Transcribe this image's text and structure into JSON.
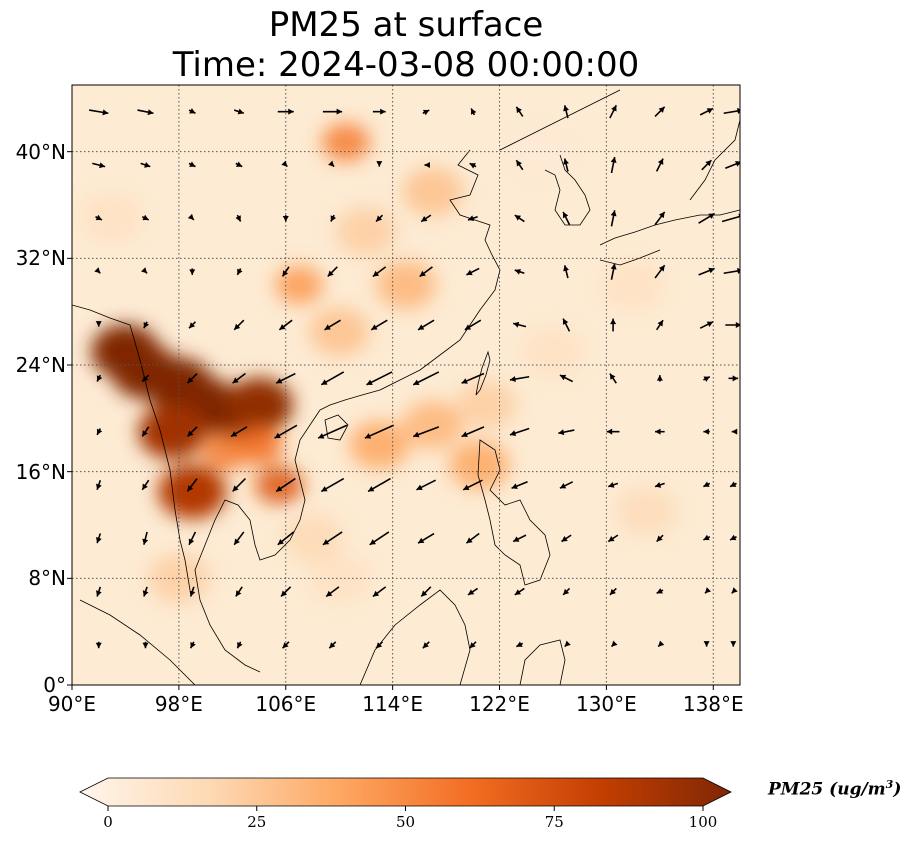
{
  "title": {
    "line1": "PM25 at surface",
    "line2": "Time: 2024-03-08 00:00:00"
  },
  "map": {
    "lon_range": [
      90,
      140
    ],
    "lat_range": [
      0,
      45
    ],
    "gridlines": true,
    "lat_ticks": [
      {
        "value": 40,
        "label": "40°N"
      },
      {
        "value": 32,
        "label": "32°N"
      },
      {
        "value": 24,
        "label": "24°N"
      },
      {
        "value": 16,
        "label": "16°N"
      },
      {
        "value": 8,
        "label": "8°N"
      },
      {
        "value": 0,
        "label": "0°"
      }
    ],
    "lon_ticks": [
      {
        "value": 90,
        "label": "90°E"
      },
      {
        "value": 98,
        "label": "98°E"
      },
      {
        "value": 106,
        "label": "106°E"
      },
      {
        "value": 114,
        "label": "114°E"
      },
      {
        "value": 122,
        "label": "122°E"
      },
      {
        "value": 130,
        "label": "130°E"
      },
      {
        "value": 138,
        "label": "138°E"
      }
    ],
    "coastline_color": "#000000",
    "vector_color": "#000000"
  },
  "colorbar": {
    "title_text": "PM25 (ug/m",
    "title_superscript": "3",
    "title_close": ")",
    "min": 0,
    "max": 100,
    "ticks": [
      {
        "value": 0,
        "label": "0"
      },
      {
        "value": 25,
        "label": "25"
      },
      {
        "value": 50,
        "label": "50"
      },
      {
        "value": 75,
        "label": "75"
      },
      {
        "value": 100,
        "label": "100"
      }
    ],
    "colormap": [
      "#fff5eb",
      "#fdd9b4",
      "#fda762",
      "#f36d22",
      "#c33e02",
      "#7f2704"
    ]
  },
  "pm25_field": [
    {
      "lon": 94,
      "lat": 25,
      "value": 110
    },
    {
      "lon": 95.5,
      "lat": 23.5,
      "value": 100
    },
    {
      "lon": 98,
      "lat": 22.5,
      "value": 100
    },
    {
      "lon": 100,
      "lat": 21,
      "value": 110
    },
    {
      "lon": 102.5,
      "lat": 20,
      "value": 105
    },
    {
      "lon": 104,
      "lat": 21,
      "value": 95
    },
    {
      "lon": 97.5,
      "lat": 19,
      "value": 90
    },
    {
      "lon": 99,
      "lat": 14.5,
      "value": 85
    },
    {
      "lon": 105.5,
      "lat": 15,
      "value": 70
    },
    {
      "lon": 104,
      "lat": 18,
      "value": 60
    },
    {
      "lon": 101.5,
      "lat": 17.5,
      "value": 55
    },
    {
      "lon": 107,
      "lat": 30,
      "value": 45
    },
    {
      "lon": 110,
      "lat": 26.5,
      "value": 30
    },
    {
      "lon": 115,
      "lat": 30,
      "value": 35
    },
    {
      "lon": 112,
      "lat": 34,
      "value": 25
    },
    {
      "lon": 117,
      "lat": 37,
      "value": 30
    },
    {
      "lon": 110.5,
      "lat": 40.7,
      "value": 55
    },
    {
      "lon": 113,
      "lat": 18,
      "value": 40
    },
    {
      "lon": 117,
      "lat": 19.5,
      "value": 35
    },
    {
      "lon": 121,
      "lat": 21,
      "value": 25
    },
    {
      "lon": 126,
      "lat": 25,
      "value": 15
    },
    {
      "lon": 120.5,
      "lat": 16.5,
      "value": 40
    },
    {
      "lon": 108,
      "lat": 11,
      "value": 20
    },
    {
      "lon": 98,
      "lat": 8,
      "value": 25
    },
    {
      "lon": 110,
      "lat": 8,
      "value": 15
    },
    {
      "lon": 93,
      "lat": 35,
      "value": 15
    },
    {
      "lon": 133,
      "lat": 13,
      "value": 18
    },
    {
      "lon": 132,
      "lat": 30,
      "value": 15
    },
    {
      "lon": 125,
      "lat": 40,
      "value": 8
    }
  ],
  "wind_field": {
    "rows": [
      {
        "lat": 43,
        "u": [
          6,
          5,
          2,
          3,
          5,
          6,
          4,
          2,
          -1,
          -2,
          -1,
          2,
          3,
          4,
          6
        ]
      },
      {
        "lat": 39,
        "u": [
          4,
          3,
          2,
          2,
          1,
          1,
          0,
          -1,
          -2,
          -2,
          -1,
          1,
          2,
          3,
          5
        ]
      },
      {
        "lat": 35,
        "u": [
          2,
          2,
          1,
          1,
          0,
          -1,
          -2,
          -3,
          -3,
          -3,
          -2,
          1,
          3,
          5,
          7
        ]
      },
      {
        "lat": 31,
        "u": [
          1,
          1,
          0,
          -1,
          -2,
          -3,
          -4,
          -4,
          -4,
          -3,
          -1,
          1,
          3,
          5,
          6
        ]
      },
      {
        "lat": 27,
        "u": [
          0,
          -1,
          -2,
          -3,
          -4,
          -5,
          -5,
          -5,
          -5,
          -4,
          -2,
          0,
          2,
          4,
          5
        ]
      },
      {
        "lat": 23,
        "u": [
          -1,
          -2,
          -3,
          -4,
          -6,
          -7,
          -8,
          -8,
          -7,
          -6,
          -4,
          -2,
          0,
          2,
          3
        ]
      },
      {
        "lat": 19,
        "u": [
          -1,
          -2,
          -3,
          -5,
          -7,
          -9,
          -9,
          -8,
          -7,
          -6,
          -5,
          -4,
          -3,
          -2,
          -1
        ]
      },
      {
        "lat": 15,
        "u": [
          -1,
          -2,
          -3,
          -4,
          -6,
          -7,
          -7,
          -6,
          -6,
          -5,
          -4,
          -3,
          -3,
          -2,
          -2
        ]
      },
      {
        "lat": 11,
        "u": [
          -1,
          -1,
          -2,
          -3,
          -5,
          -6,
          -6,
          -5,
          -4,
          -4,
          -3,
          -3,
          -2,
          -2,
          -2
        ]
      },
      {
        "lat": 7,
        "u": [
          -1,
          -1,
          -1,
          -2,
          -3,
          -4,
          -4,
          -3,
          -3,
          -3,
          -2,
          -2,
          -2,
          -1,
          -1
        ]
      },
      {
        "lat": 3,
        "u": [
          0,
          0,
          -1,
          -1,
          -2,
          -2,
          -2,
          -2,
          -2,
          -2,
          -1,
          -1,
          -1,
          0,
          0
        ]
      }
    ],
    "lons": [
      92,
      95.5,
      99,
      102.5,
      106,
      109.5,
      113,
      116.5,
      120,
      123.5,
      127,
      130.5,
      134,
      137.5,
      139.5
    ],
    "v": [
      [
        -1,
        -1,
        -1,
        -1,
        0,
        0,
        0,
        1,
        2,
        3,
        4,
        4,
        3,
        2,
        1
      ],
      [
        -1,
        -1,
        -1,
        -1,
        -1,
        -1,
        -1,
        0,
        1,
        3,
        4,
        5,
        4,
        3,
        2
      ],
      [
        -1,
        -1,
        -1,
        -2,
        -2,
        -2,
        -2,
        -2,
        -1,
        2,
        4,
        5,
        4,
        3,
        2
      ],
      [
        -1,
        -1,
        -2,
        -2,
        -3,
        -3,
        -3,
        -3,
        -2,
        1,
        4,
        5,
        4,
        2,
        1
      ],
      [
        -1,
        -2,
        -2,
        -3,
        -3,
        -3,
        -3,
        -3,
        -3,
        1,
        4,
        4,
        3,
        2,
        0
      ],
      [
        -2,
        -2,
        -3,
        -3,
        -3,
        -4,
        -4,
        -4,
        -3,
        -1,
        2,
        3,
        2,
        1,
        0
      ],
      [
        -2,
        -3,
        -3,
        -3,
        -4,
        -4,
        -4,
        -3,
        -3,
        -2,
        -1,
        0,
        0,
        0,
        0
      ],
      [
        -3,
        -3,
        -4,
        -4,
        -4,
        -4,
        -4,
        -3,
        -3,
        -2,
        -2,
        -1,
        -1,
        -1,
        -1
      ],
      [
        -3,
        -4,
        -4,
        -4,
        -4,
        -4,
        -4,
        -3,
        -3,
        -2,
        -2,
        -2,
        -2,
        -1,
        -1
      ],
      [
        -3,
        -3,
        -3,
        -3,
        -3,
        -3,
        -3,
        -3,
        -2,
        -2,
        -2,
        -2,
        -1,
        -1,
        -1
      ],
      [
        -2,
        -2,
        -2,
        -2,
        -2,
        -2,
        -2,
        -2,
        -2,
        -1,
        -1,
        -1,
        -1,
        -1,
        -1
      ]
    ]
  }
}
